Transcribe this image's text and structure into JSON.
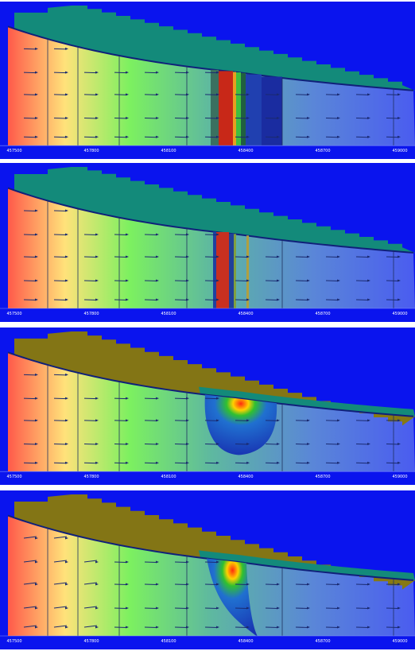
{
  "x_axis_labels": [
    "457500",
    "457800",
    "458100",
    "458400",
    "458700",
    "459000"
  ]
}
